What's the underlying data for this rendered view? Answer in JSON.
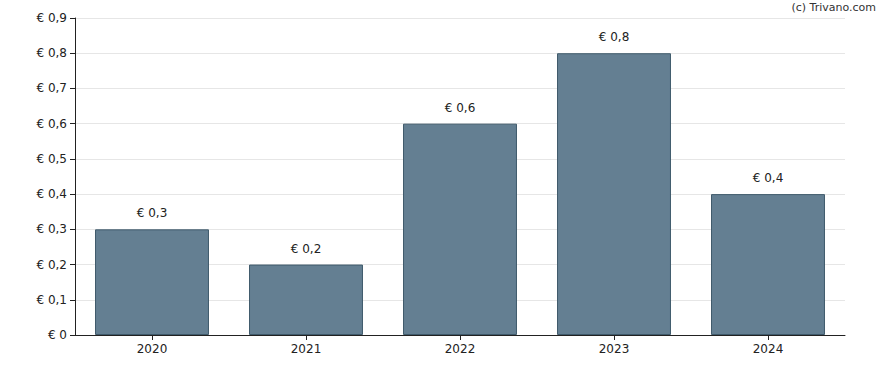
{
  "chart_data": {
    "type": "bar",
    "annotation": "(c) Trivano.com",
    "categories": [
      "2020",
      "2021",
      "2022",
      "2023",
      "2024"
    ],
    "values": [
      0.3,
      0.2,
      0.6,
      0.8,
      0.4
    ],
    "value_labels": [
      "€ 0,3",
      "€ 0,2",
      "€ 0,6",
      "€ 0,8",
      "€ 0,4"
    ],
    "data_labels": true,
    "color": "#647f92",
    "ylim": [
      0,
      0.9
    ],
    "yticks": [
      {
        "value": 0,
        "label": "€ 0"
      },
      {
        "value": 0.1,
        "label": "€ 0,1"
      },
      {
        "value": 0.2,
        "label": "€ 0,2"
      },
      {
        "value": 0.3,
        "label": "€ 0,3"
      },
      {
        "value": 0.4,
        "label": "€ 0,4"
      },
      {
        "value": 0.5,
        "label": "€ 0,5"
      },
      {
        "value": 0.6,
        "label": "€ 0,6"
      },
      {
        "value": 0.7,
        "label": "€ 0,7"
      },
      {
        "value": 0.8,
        "label": "€ 0,8"
      },
      {
        "value": 0.9,
        "label": "€ 0,9"
      }
    ],
    "grid": true
  }
}
